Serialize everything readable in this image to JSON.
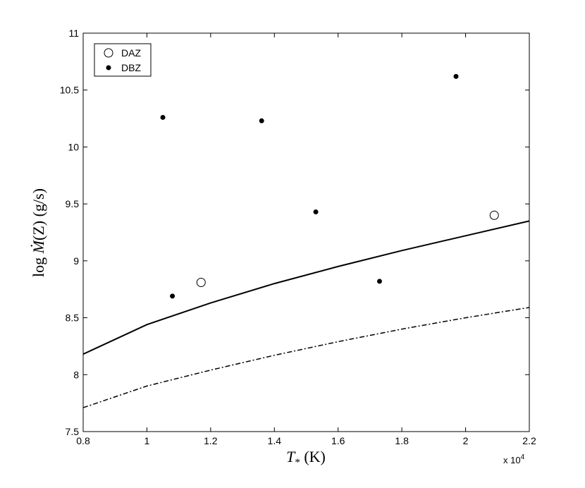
{
  "chart_data": {
    "type": "scatter",
    "title": "",
    "xlabel": "T_* (K)",
    "ylabel": "log Ṁ(Z) (g/s)",
    "x_multiplier_label": "x 10^4",
    "xlim": [
      0.8,
      2.2
    ],
    "ylim": [
      7.5,
      11
    ],
    "x_ticks": [
      "0.8",
      "1",
      "1.2",
      "1.4",
      "1.6",
      "1.8",
      "2",
      "2.2"
    ],
    "y_ticks": [
      "7.5",
      "8",
      "8.5",
      "9",
      "9.5",
      "10",
      "10.5",
      "11"
    ],
    "grid": false,
    "legend_position": "top-left",
    "series": [
      {
        "name": "DAZ",
        "kind": "points",
        "marker": "open-circle",
        "points": [
          {
            "x": 1.17,
            "y": 8.81
          },
          {
            "x": 2.09,
            "y": 9.4
          }
        ]
      },
      {
        "name": "DBZ",
        "kind": "points",
        "marker": "filled-dot",
        "points": [
          {
            "x": 1.05,
            "y": 10.26
          },
          {
            "x": 1.08,
            "y": 8.69
          },
          {
            "x": 1.36,
            "y": 10.23
          },
          {
            "x": 1.53,
            "y": 9.43
          },
          {
            "x": 1.73,
            "y": 8.82
          },
          {
            "x": 1.97,
            "y": 10.62
          }
        ]
      },
      {
        "kind": "line",
        "style": "solid",
        "points": [
          {
            "x": 0.8,
            "y": 8.18
          },
          {
            "x": 1.0,
            "y": 8.44
          },
          {
            "x": 1.2,
            "y": 8.63
          },
          {
            "x": 1.4,
            "y": 8.8
          },
          {
            "x": 1.6,
            "y": 8.95
          },
          {
            "x": 1.8,
            "y": 9.09
          },
          {
            "x": 2.0,
            "y": 9.22
          },
          {
            "x": 2.2,
            "y": 9.35
          }
        ]
      },
      {
        "kind": "line",
        "style": "dash-dot",
        "points": [
          {
            "x": 0.8,
            "y": 7.71
          },
          {
            "x": 1.0,
            "y": 7.9
          },
          {
            "x": 1.2,
            "y": 8.04
          },
          {
            "x": 1.4,
            "y": 8.17
          },
          {
            "x": 1.6,
            "y": 8.29
          },
          {
            "x": 1.8,
            "y": 8.4
          },
          {
            "x": 2.0,
            "y": 8.5
          },
          {
            "x": 2.2,
            "y": 8.59
          }
        ]
      }
    ],
    "colors": {
      "axes": "#000000",
      "background": "#ffffff",
      "lines": "#000000"
    }
  }
}
